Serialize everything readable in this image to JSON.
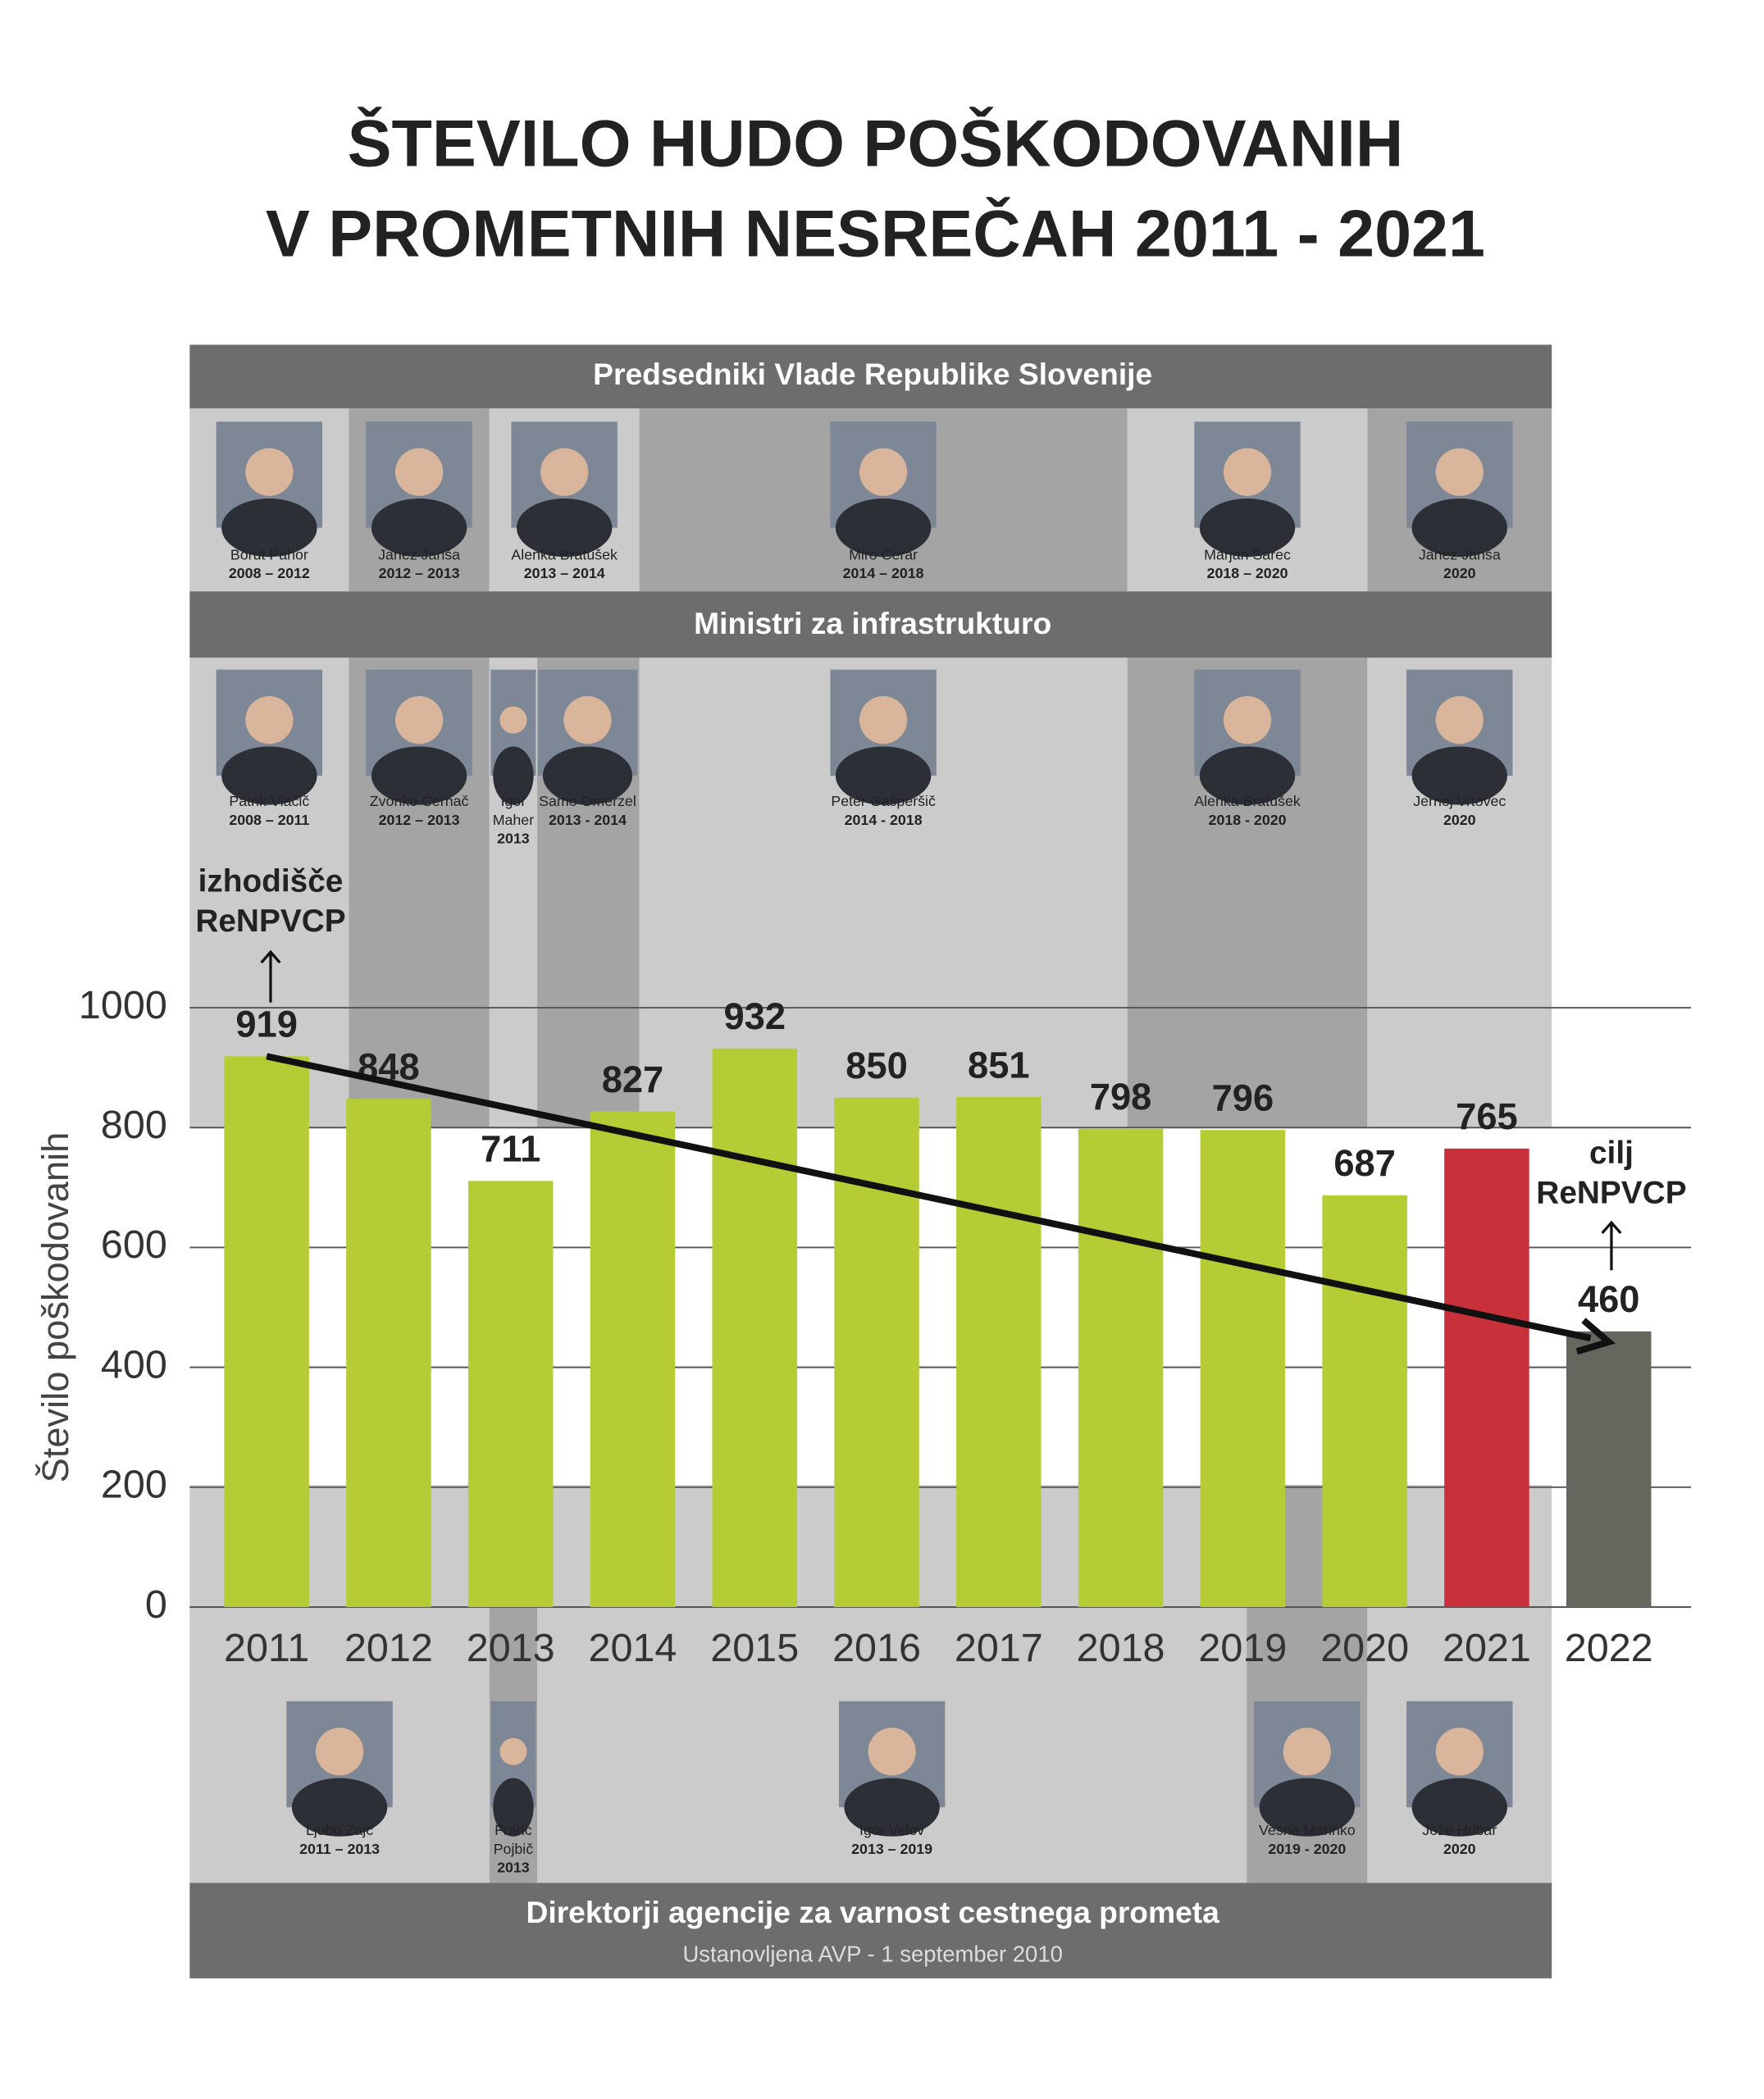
{
  "title": [
    "ŠTEVILO HUDO POŠKODOVANIH",
    "V PROMETNIH NESREČAH 2011 - 2021"
  ],
  "prime_ministers": {
    "heading": "Predsedniki Vlade Republike Slovenije",
    "people": [
      {
        "name": "Borut Pahor",
        "years": "2008 – 2012"
      },
      {
        "name": "Janez Janša",
        "years": "2012 – 2013"
      },
      {
        "name": "Alenka Bratušek",
        "years": "2013 – 2014"
      },
      {
        "name": "Miro Cerar",
        "years": "2014 – 2018"
      },
      {
        "name": "Marjan Šarec",
        "years": "2018 – 2020"
      },
      {
        "name": "Janez Janša",
        "years": "2020"
      }
    ]
  },
  "ministers": {
    "heading": "Ministri za infrastrukturo",
    "people": [
      {
        "name": "Patrik Vlačič",
        "years": "2008 – 2011"
      },
      {
        "name": "Zvonko Černač",
        "years": "2012 – 2013"
      },
      {
        "name": "Igor Maher",
        "years": "2013"
      },
      {
        "name": "Samo Omerzel",
        "years": "2013 - 2014"
      },
      {
        "name": "Peter Gašperšič",
        "years": "2014 - 2018"
      },
      {
        "name": "Alenka Bratušek",
        "years": "2018 - 2020"
      },
      {
        "name": "Jernej Vrtovec",
        "years": "2020"
      }
    ]
  },
  "directors": {
    "heading": "Direktorji agencije za varnost cestnega prometa",
    "note": "Ustanovljena AVP  - 1 september 2010",
    "people": [
      {
        "name": "Ljubo Zajc",
        "years": "2011 – 2013"
      },
      {
        "name": "Franc Pojbič",
        "years": "2013"
      },
      {
        "name": "Igor Velov",
        "years": "2013 – 2019"
      },
      {
        "name": "Vesna Marinko",
        "years": "2019 - 2020"
      },
      {
        "name": "Jože Hribar",
        "years": "2020"
      }
    ]
  },
  "chart_data": {
    "type": "bar",
    "categories": [
      "2011",
      "2012",
      "2013",
      "2014",
      "2015",
      "2016",
      "2017",
      "2018",
      "2019",
      "2020",
      "2021",
      "2022"
    ],
    "values": [
      919,
      848,
      711,
      827,
      932,
      850,
      851,
      798,
      796,
      687,
      765,
      460
    ],
    "colors": [
      "#b5cc34",
      "#b5cc34",
      "#b5cc34",
      "#b5cc34",
      "#b5cc34",
      "#b5cc34",
      "#b5cc34",
      "#b5cc34",
      "#b5cc34",
      "#b5cc34",
      "#c8303a",
      "#65665e"
    ],
    "ylabel": "Število poškodovanih",
    "ylim": [
      0,
      1000
    ],
    "yticks": [
      0,
      200,
      400,
      600,
      800,
      1000
    ],
    "grid": true,
    "start_label": [
      "izhodišče",
      "ReNPVCP"
    ],
    "target_label": [
      "cilj",
      "ReNPVCP"
    ]
  }
}
